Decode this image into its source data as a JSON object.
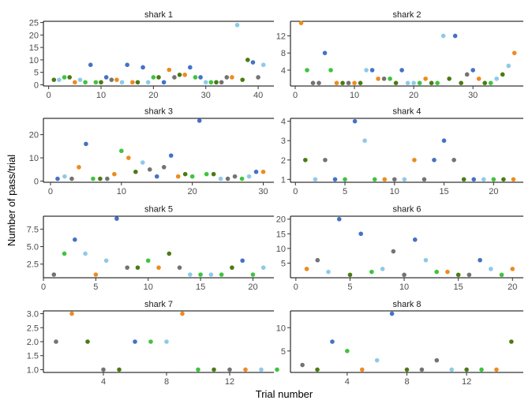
{
  "chart_data": {
    "type": "scatter",
    "xlabel": "Trial number",
    "ylabel": "Number of pass/trial",
    "colors": {
      "blue": "#4472c4",
      "orange": "#ed8b1e",
      "green": "#3ec43e",
      "darkgreen": "#4a7b14",
      "grey": "#737373",
      "lightblue": "#8ecae8"
    },
    "panels": [
      {
        "title": "shark 1",
        "xlim": [
          -1,
          43
        ],
        "ylim": [
          -0.5,
          25.5
        ],
        "xticks": [
          0,
          10,
          20,
          30,
          40
        ],
        "yticks": [
          0,
          5,
          10,
          15,
          20,
          25
        ],
        "ytick_labels": [
          "0",
          "5",
          "10",
          "15",
          "20",
          "25"
        ],
        "points": [
          [
            1,
            2,
            "darkgreen"
          ],
          [
            2,
            2,
            "lightblue"
          ],
          [
            3,
            3,
            "green"
          ],
          [
            4,
            3,
            "darkgreen"
          ],
          [
            5,
            1,
            "orange"
          ],
          [
            6,
            2,
            "lightblue"
          ],
          [
            7,
            1,
            "green"
          ],
          [
            8,
            8,
            "blue"
          ],
          [
            9,
            1,
            "green"
          ],
          [
            10,
            1,
            "darkgreen"
          ],
          [
            11,
            3,
            "blue"
          ],
          [
            12,
            2,
            "grey"
          ],
          [
            13,
            2,
            "orange"
          ],
          [
            14,
            1,
            "lightblue"
          ],
          [
            15,
            8,
            "blue"
          ],
          [
            16,
            1,
            "orange"
          ],
          [
            17,
            1,
            "darkgreen"
          ],
          [
            18,
            7,
            "blue"
          ],
          [
            19,
            1,
            "lightblue"
          ],
          [
            20,
            3,
            "green"
          ],
          [
            21,
            3,
            "darkgreen"
          ],
          [
            22,
            1,
            "blue"
          ],
          [
            23,
            6,
            "orange"
          ],
          [
            24,
            3,
            "grey"
          ],
          [
            25,
            4,
            "darkgreen"
          ],
          [
            26,
            4,
            "orange"
          ],
          [
            27,
            7,
            "blue"
          ],
          [
            28,
            3,
            "green"
          ],
          [
            29,
            3,
            "blue"
          ],
          [
            30,
            1,
            "lightblue"
          ],
          [
            31,
            1,
            "green"
          ],
          [
            32,
            1,
            "darkgreen"
          ],
          [
            33,
            1,
            "grey"
          ],
          [
            34,
            3,
            "grey"
          ],
          [
            35,
            3,
            "orange"
          ],
          [
            36,
            24,
            "lightblue"
          ],
          [
            37,
            2,
            "darkgreen"
          ],
          [
            38,
            10,
            "darkgreen"
          ],
          [
            39,
            9,
            "blue"
          ],
          [
            40,
            3,
            "grey"
          ],
          [
            41,
            8,
            "lightblue"
          ]
        ]
      },
      {
        "title": "shark 2",
        "xlim": [
          -0.8,
          38.5
        ],
        "ylim": [
          0.3,
          15.4
        ],
        "xticks": [
          0,
          10,
          20,
          30
        ],
        "yticks": [
          4,
          8,
          12
        ],
        "ytick_labels": [
          "4",
          "8",
          "12"
        ],
        "points": [
          [
            1,
            15,
            "orange"
          ],
          [
            2,
            4,
            "green"
          ],
          [
            3,
            1,
            "grey"
          ],
          [
            4,
            1,
            "grey"
          ],
          [
            5,
            8,
            "blue"
          ],
          [
            6,
            4,
            "green"
          ],
          [
            7,
            1,
            "orange"
          ],
          [
            8,
            1,
            "darkgreen"
          ],
          [
            9,
            1,
            "grey"
          ],
          [
            10,
            1,
            "orange"
          ],
          [
            11,
            1,
            "darkgreen"
          ],
          [
            12,
            4,
            "lightblue"
          ],
          [
            13,
            4,
            "blue"
          ],
          [
            14,
            2,
            "orange"
          ],
          [
            15,
            2,
            "grey"
          ],
          [
            16,
            2,
            "green"
          ],
          [
            17,
            1,
            "darkgreen"
          ],
          [
            18,
            4,
            "blue"
          ],
          [
            19,
            1,
            "lightblue"
          ],
          [
            20,
            1,
            "lightblue"
          ],
          [
            21,
            1,
            "green"
          ],
          [
            22,
            2,
            "orange"
          ],
          [
            23,
            1,
            "darkgreen"
          ],
          [
            24,
            1,
            "green"
          ],
          [
            25,
            12,
            "lightblue"
          ],
          [
            26,
            2,
            "darkgreen"
          ],
          [
            27,
            12,
            "blue"
          ],
          [
            28,
            1,
            "darkgreen"
          ],
          [
            29,
            3,
            "grey"
          ],
          [
            30,
            4,
            "blue"
          ],
          [
            31,
            2,
            "orange"
          ],
          [
            32,
            1,
            "darkgreen"
          ],
          [
            33,
            1,
            "green"
          ],
          [
            34,
            2,
            "lightblue"
          ],
          [
            35,
            3,
            "darkgreen"
          ],
          [
            36,
            5,
            "lightblue"
          ],
          [
            37,
            8,
            "orange"
          ]
        ]
      },
      {
        "title": "shark 3",
        "xlim": [
          -1,
          31.5
        ],
        "ylim": [
          -0.5,
          27
        ],
        "xticks": [
          0,
          10,
          20,
          30
        ],
        "yticks": [
          0,
          10,
          20
        ],
        "ytick_labels": [
          "0",
          "10",
          "20"
        ],
        "points": [
          [
            1,
            1,
            "blue"
          ],
          [
            2,
            2,
            "lightblue"
          ],
          [
            3,
            1,
            "grey"
          ],
          [
            4,
            6,
            "orange"
          ],
          [
            5,
            16,
            "blue"
          ],
          [
            6,
            1,
            "green"
          ],
          [
            7,
            1,
            "darkgreen"
          ],
          [
            8,
            1,
            "grey"
          ],
          [
            9,
            3,
            "orange"
          ],
          [
            10,
            13,
            "green"
          ],
          [
            11,
            10,
            "orange"
          ],
          [
            12,
            4,
            "darkgreen"
          ],
          [
            13,
            8,
            "lightblue"
          ],
          [
            14,
            5,
            "grey"
          ],
          [
            15,
            2,
            "blue"
          ],
          [
            16,
            6,
            "grey"
          ],
          [
            17,
            11,
            "blue"
          ],
          [
            18,
            2,
            "orange"
          ],
          [
            19,
            3,
            "darkgreen"
          ],
          [
            20,
            2,
            "green"
          ],
          [
            21,
            26,
            "blue"
          ],
          [
            22,
            3,
            "green"
          ],
          [
            23,
            3,
            "darkgreen"
          ],
          [
            24,
            1,
            "lightblue"
          ],
          [
            25,
            1,
            "grey"
          ],
          [
            26,
            2,
            "grey"
          ],
          [
            27,
            1,
            "green"
          ],
          [
            28,
            2,
            "lightblue"
          ],
          [
            29,
            4,
            "blue"
          ],
          [
            30,
            4,
            "orange"
          ]
        ]
      },
      {
        "title": "shark 4",
        "xlim": [
          -0.5,
          23
        ],
        "ylim": [
          0.85,
          4.15
        ],
        "xticks": [
          0,
          5,
          10,
          15,
          20
        ],
        "yticks": [
          1,
          2,
          3,
          4
        ],
        "ytick_labels": [
          "1",
          "2",
          "3",
          "4"
        ],
        "points": [
          [
            1,
            2,
            "darkgreen"
          ],
          [
            2,
            1,
            "lightblue"
          ],
          [
            3,
            2,
            "grey"
          ],
          [
            4,
            1,
            "blue"
          ],
          [
            5,
            1,
            "green"
          ],
          [
            6,
            4,
            "blue"
          ],
          [
            7,
            3,
            "lightblue"
          ],
          [
            8,
            1,
            "green"
          ],
          [
            9,
            1,
            "orange"
          ],
          [
            10,
            1,
            "grey"
          ],
          [
            11,
            1,
            "lightblue"
          ],
          [
            12,
            2,
            "orange"
          ],
          [
            13,
            1,
            "grey"
          ],
          [
            14,
            2,
            "blue"
          ],
          [
            15,
            3,
            "blue"
          ],
          [
            16,
            2,
            "grey"
          ],
          [
            17,
            1,
            "darkgreen"
          ],
          [
            18,
            1,
            "blue"
          ],
          [
            19,
            1,
            "lightblue"
          ],
          [
            20,
            1,
            "green"
          ],
          [
            21,
            1,
            "darkgreen"
          ],
          [
            22,
            1,
            "orange"
          ]
        ]
      },
      {
        "title": "shark 5",
        "xlim": [
          0,
          22
        ],
        "ylim": [
          0.55,
          9.35
        ],
        "xticks": [
          0,
          5,
          10,
          15,
          20
        ],
        "yticks": [
          2.5,
          5.0,
          7.5
        ],
        "ytick_labels": [
          "2.5",
          "5.0",
          "7.5"
        ],
        "points": [
          [
            1,
            1,
            "grey"
          ],
          [
            2,
            4,
            "green"
          ],
          [
            3,
            6,
            "blue"
          ],
          [
            4,
            4,
            "lightblue"
          ],
          [
            5,
            1,
            "orange"
          ],
          [
            6,
            3,
            "lightblue"
          ],
          [
            7,
            9,
            "blue"
          ],
          [
            8,
            2,
            "grey"
          ],
          [
            9,
            2,
            "darkgreen"
          ],
          [
            10,
            3,
            "green"
          ],
          [
            11,
            2,
            "orange"
          ],
          [
            12,
            4,
            "darkgreen"
          ],
          [
            13,
            2,
            "grey"
          ],
          [
            14,
            1,
            "lightblue"
          ],
          [
            15,
            1,
            "green"
          ],
          [
            16,
            1,
            "lightblue"
          ],
          [
            17,
            1,
            "green"
          ],
          [
            18,
            2,
            "darkgreen"
          ],
          [
            19,
            3,
            "blue"
          ],
          [
            20,
            1,
            "green"
          ],
          [
            21,
            2,
            "lightblue"
          ]
        ]
      },
      {
        "title": "shark 6",
        "xlim": [
          -0.5,
          21
        ],
        "ylim": [
          0,
          21
        ],
        "xticks": [
          0,
          5,
          10,
          15,
          20
        ],
        "yticks": [
          5,
          10,
          15,
          20
        ],
        "ytick_labels": [
          "5",
          "10",
          "15",
          "20"
        ],
        "points": [
          [
            1,
            3,
            "orange"
          ],
          [
            2,
            6,
            "grey"
          ],
          [
            3,
            2,
            "lightblue"
          ],
          [
            4,
            20,
            "blue"
          ],
          [
            5,
            1,
            "darkgreen"
          ],
          [
            6,
            15,
            "blue"
          ],
          [
            7,
            2,
            "green"
          ],
          [
            8,
            3,
            "lightblue"
          ],
          [
            9,
            9,
            "grey"
          ],
          [
            10,
            1,
            "grey"
          ],
          [
            11,
            13,
            "blue"
          ],
          [
            12,
            6,
            "lightblue"
          ],
          [
            13,
            2,
            "green"
          ],
          [
            14,
            2,
            "orange"
          ],
          [
            15,
            1,
            "darkgreen"
          ],
          [
            16,
            1,
            "grey"
          ],
          [
            17,
            6,
            "blue"
          ],
          [
            18,
            3,
            "lightblue"
          ],
          [
            19,
            1,
            "green"
          ],
          [
            20,
            3,
            "orange"
          ]
        ]
      },
      {
        "title": "shark 7",
        "xlim": [
          0.2,
          14.8
        ],
        "ylim": [
          0.9,
          3.1
        ],
        "xticks": [
          4,
          8,
          12
        ],
        "yticks": [
          1.0,
          1.5,
          2.0,
          2.5,
          3.0
        ],
        "ytick_labels": [
          "1.0",
          "1.5",
          "2.0",
          "2.5",
          "3.0"
        ],
        "points": [
          [
            1,
            2,
            "grey"
          ],
          [
            2,
            3,
            "orange"
          ],
          [
            3,
            2,
            "darkgreen"
          ],
          [
            4,
            1,
            "grey"
          ],
          [
            5,
            1,
            "darkgreen"
          ],
          [
            6,
            2,
            "blue"
          ],
          [
            7,
            2,
            "green"
          ],
          [
            8,
            2,
            "lightblue"
          ],
          [
            9,
            3,
            "orange"
          ],
          [
            10,
            1,
            "green"
          ],
          [
            11,
            1,
            "darkgreen"
          ],
          [
            12,
            1,
            "grey"
          ],
          [
            13,
            1,
            "orange"
          ],
          [
            14,
            1,
            "lightblue"
          ],
          [
            15,
            1,
            "green"
          ]
        ]
      },
      {
        "title": "shark 8",
        "xlim": [
          0.2,
          15.8
        ],
        "ylim": [
          0.4,
          13.6
        ],
        "xticks": [
          4,
          8,
          12
        ],
        "yticks": [
          5,
          10
        ],
        "ytick_labels": [
          "5",
          "10"
        ],
        "points": [
          [
            1,
            2,
            "grey"
          ],
          [
            2,
            1,
            "darkgreen"
          ],
          [
            3,
            7,
            "blue"
          ],
          [
            4,
            5,
            "green"
          ],
          [
            5,
            1,
            "orange"
          ],
          [
            6,
            3,
            "lightblue"
          ],
          [
            7,
            13,
            "blue"
          ],
          [
            8,
            1,
            "darkgreen"
          ],
          [
            9,
            1,
            "grey"
          ],
          [
            10,
            3,
            "grey"
          ],
          [
            11,
            1,
            "lightblue"
          ],
          [
            12,
            1,
            "darkgreen"
          ],
          [
            13,
            1,
            "green"
          ],
          [
            14,
            1,
            "orange"
          ],
          [
            15,
            7,
            "darkgreen"
          ]
        ]
      }
    ]
  }
}
